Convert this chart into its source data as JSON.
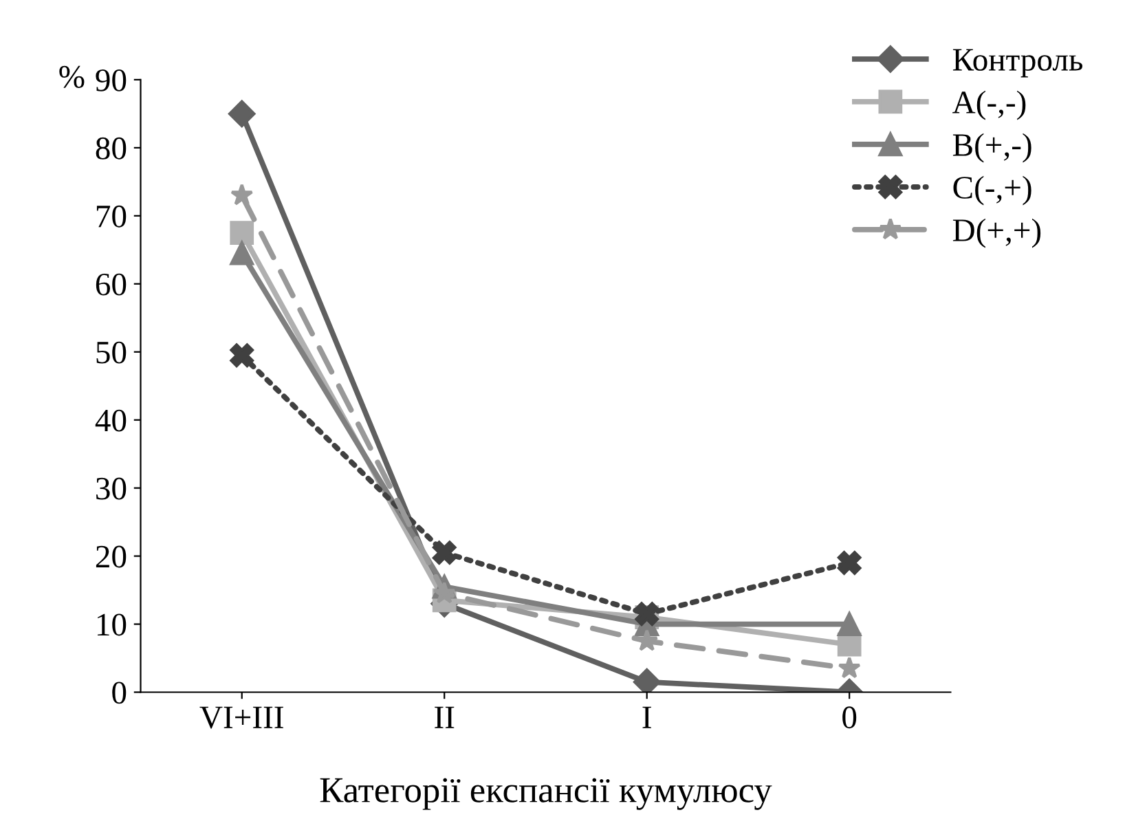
{
  "chart_data": {
    "type": "line",
    "xlabel": "Категорії експансії кумулюсу",
    "ylabel": "%",
    "categories": [
      "VI+III",
      "II",
      "I",
      "0"
    ],
    "series": [
      {
        "name": "Контроль",
        "color": "#606060",
        "marker": "diamond",
        "line_style": "solid",
        "values": [
          85,
          13,
          1.5,
          0
        ]
      },
      {
        "name": "A(-,-)",
        "color": "#b0b0b0",
        "marker": "square",
        "line_style": "solid",
        "values": [
          67.5,
          13.5,
          11,
          7
        ]
      },
      {
        "name": "B(+,-)",
        "color": "#7f7f7f",
        "marker": "triangle",
        "line_style": "solid",
        "values": [
          64.5,
          15.5,
          10,
          10
        ]
      },
      {
        "name": "C(-,+)",
        "color": "#404040",
        "marker": "cross",
        "line_style": "dotted",
        "values": [
          49.5,
          20.5,
          11.5,
          19
        ]
      },
      {
        "name": "D(+,+)",
        "color": "#999999",
        "marker": "star",
        "line_style": "dashed",
        "values": [
          73,
          14.5,
          7.5,
          3.5
        ]
      }
    ],
    "ylim": [
      0,
      90
    ],
    "yticks": [
      0,
      10,
      20,
      30,
      40,
      50,
      60,
      70,
      80,
      90
    ],
    "grid": false,
    "legend": "top right"
  }
}
